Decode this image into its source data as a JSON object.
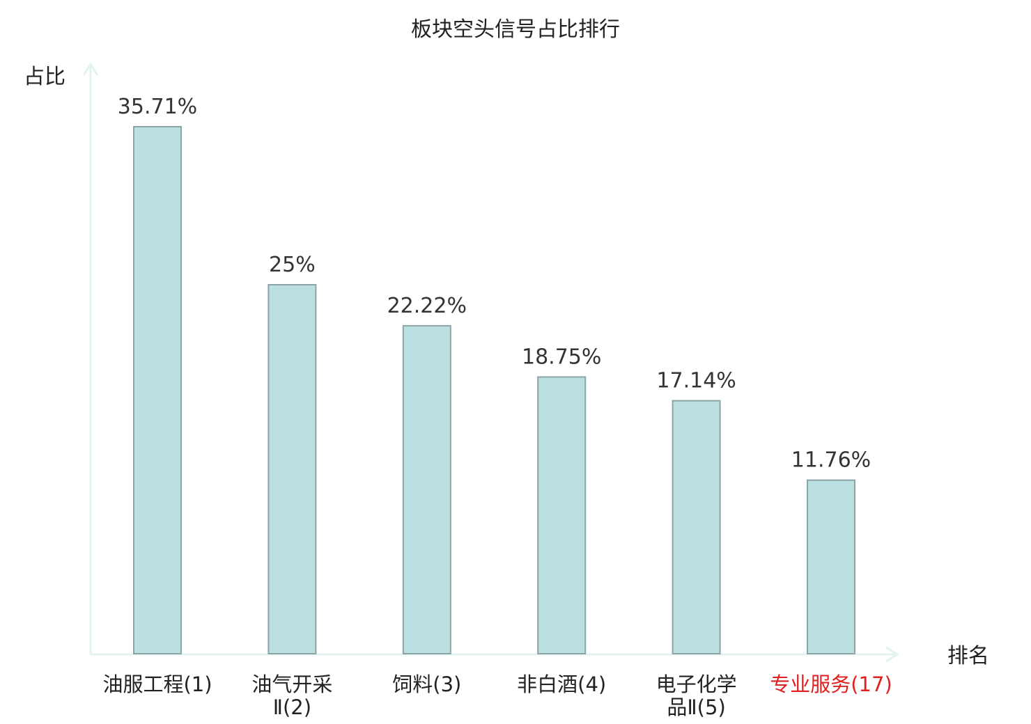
{
  "chart_data": {
    "type": "bar",
    "title": "板块空头信号占比排行",
    "ylabel": "占比",
    "xlabel": "排名",
    "ylim": [
      0,
      40
    ],
    "categories": [
      [
        "油服工程(1)"
      ],
      [
        "油气开采",
        "Ⅱ(2)"
      ],
      [
        "饲料(3)"
      ],
      [
        "非白酒(4)"
      ],
      [
        "电子化学",
        "品Ⅱ(5)"
      ],
      [
        "专业服务(17)"
      ]
    ],
    "values": [
      35.71,
      25,
      22.22,
      18.75,
      17.14,
      11.76
    ],
    "value_labels": [
      "35.71%",
      "25%",
      "22.22%",
      "18.75%",
      "17.14%",
      "11.76%"
    ],
    "highlight_index": 5,
    "colors": {
      "bar_fill": "#bce0e2",
      "bar_stroke": "#8ca4a6",
      "axis": "#e2f3f1",
      "highlight_text": "#e02020"
    }
  }
}
